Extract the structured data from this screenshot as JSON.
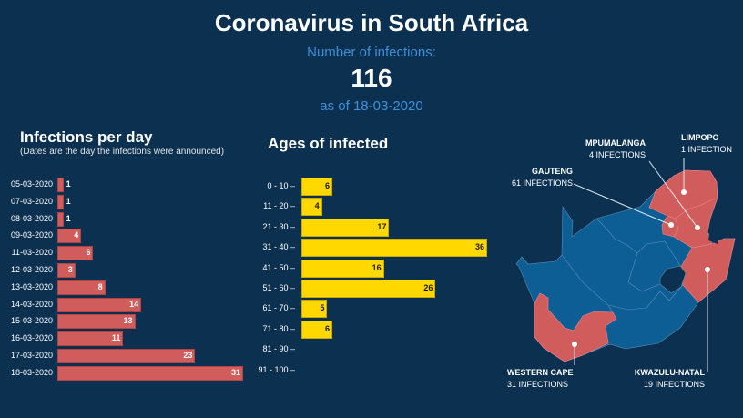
{
  "header": {
    "title": "Coronavirus in South Africa",
    "subtitle": "Number of infections:",
    "total": "116",
    "as_of": "as of 18-03-2020"
  },
  "colors": {
    "background": "#0b3050",
    "accent": "#3e8fd8",
    "infections_bar": "#d05c5b",
    "ages_bar": "#ffd800",
    "map_blue": "#0e5e96",
    "map_red": "#d05c5b"
  },
  "chart_data": [
    {
      "type": "bar",
      "orientation": "horizontal",
      "title": "Infections per day",
      "subtitle": "(Dates are the day the infections were announced)",
      "categories": [
        "05-03-2020",
        "07-03-2020",
        "08-03-2020",
        "09-03-2020",
        "11-03-2020",
        "12-03-2020",
        "13-03-2020",
        "14-03-2020",
        "15-03-2020",
        "16-03-2020",
        "17-03-2020",
        "18-03-2020"
      ],
      "values": [
        1,
        1,
        1,
        4,
        6,
        3,
        8,
        14,
        13,
        11,
        23,
        31
      ],
      "xlim": [
        0,
        31
      ]
    },
    {
      "type": "bar",
      "orientation": "horizontal",
      "title": "Ages of infected",
      "categories": [
        "0 - 10 –",
        "11 - 20 –",
        "21 - 30 –",
        "31 - 40 –",
        "41 - 50 –",
        "51 - 60 –",
        "61 - 70 –",
        "71 - 80 –",
        "81 - 90 –",
        "91 - 100 –"
      ],
      "values": [
        6,
        4,
        17,
        36,
        16,
        26,
        5,
        6,
        0,
        0
      ],
      "xlim": [
        0,
        36
      ]
    }
  ],
  "map": {
    "provinces": [
      {
        "name": "MPUMALANGA",
        "count": "4 INFECTIONS"
      },
      {
        "name": "LIMPOPO",
        "count": "1 INFECTION"
      },
      {
        "name": "GAUTENG",
        "count": "61 INFECTIONS"
      },
      {
        "name": "WESTERN CAPE",
        "count": "31 INFECTIONS"
      },
      {
        "name": "KWAZULU-NATAL",
        "count": "19 INFECTIONS"
      }
    ]
  }
}
